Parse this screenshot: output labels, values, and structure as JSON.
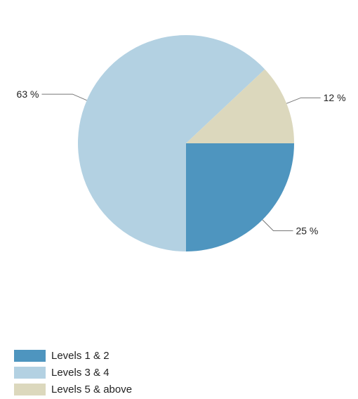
{
  "chart_data": {
    "type": "pie",
    "title": "",
    "categories": [
      "Levels 1 & 2",
      "Levels 3 & 4",
      "Levels 5 & above"
    ],
    "values": [
      25,
      63,
      12
    ],
    "value_labels": [
      "25 %",
      "63 %",
      "12 %"
    ],
    "colors": [
      "#4e95bf",
      "#b3d1e2",
      "#dcd8bd"
    ],
    "legend_position": "bottom-left",
    "start_at": "3 o'clock, clockwise"
  }
}
